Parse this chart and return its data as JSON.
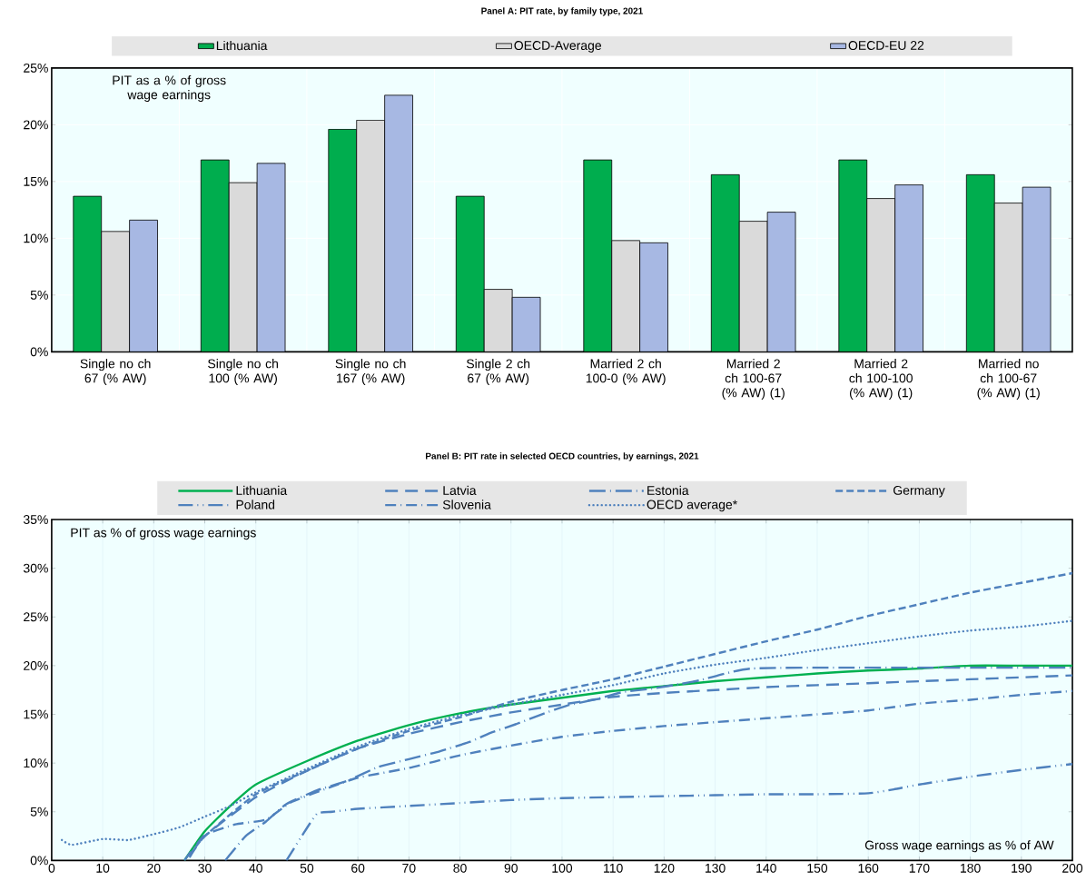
{
  "chart_data": [
    {
      "type": "bar",
      "title": "Panel A: PIT rate, by family type, 2021",
      "ylabel": "PIT as a % of gross wage earnings",
      "categories": [
        "Single no ch 67 (% AW)",
        "Single no ch 100 (% AW)",
        "Single no ch 167 (% AW)",
        "Single 2 ch 67 (% AW)",
        "Married 2 ch 100-0 (% AW)",
        "Married 2 ch 100-67 (% AW)  (1)",
        "Married 2 ch 100-100 (% AW) (1)",
        "Married no ch 100-67 (% AW)  (1)"
      ],
      "series": [
        {
          "name": "Lithuania",
          "color": "#00ad4e",
          "values": [
            13.7,
            16.9,
            19.6,
            13.7,
            16.9,
            15.6,
            16.9,
            15.6
          ]
        },
        {
          "name": "OECD-Average",
          "color": "#dadada",
          "values": [
            10.6,
            14.9,
            20.4,
            5.5,
            9.8,
            11.5,
            13.5,
            13.1
          ]
        },
        {
          "name": "OECD-EU 22",
          "color": "#a7b8e3",
          "values": [
            11.6,
            16.6,
            22.6,
            4.8,
            9.6,
            12.3,
            14.7,
            14.5
          ]
        }
      ],
      "ylim": [
        0,
        25
      ],
      "yticks": [
        {
          "value": 0,
          "label": "0%"
        },
        {
          "value": 5,
          "label": "5%"
        },
        {
          "value": 10,
          "label": "10%"
        },
        {
          "value": 15,
          "label": "15%"
        },
        {
          "value": 20,
          "label": "20%"
        },
        {
          "value": 25,
          "label": "25%"
        }
      ],
      "grid": true,
      "legend": "top"
    },
    {
      "type": "line",
      "title": "Panel B: PIT rate in selected OECD countries, by earnings, 2021",
      "ylabel": "PIT as % of gross wage earnings",
      "xlabel": "Gross wage earnings as % of AW",
      "series": [
        {
          "name": "Lithuania",
          "color": "#00b050",
          "line_style": "solid",
          "x": [
            26,
            30,
            35,
            40,
            50,
            60,
            70,
            80,
            90,
            100,
            110,
            120,
            130,
            140,
            150,
            160,
            170,
            180,
            190,
            200
          ],
          "values": [
            0,
            3.0,
            5.6,
            7.8,
            10.2,
            12.3,
            13.9,
            15.1,
            16.0,
            16.7,
            17.4,
            17.9,
            18.4,
            18.8,
            19.2,
            19.5,
            19.7,
            20.0,
            20.0,
            20.0
          ]
        },
        {
          "name": "Latvia",
          "color": "#4f81bd",
          "line_style": "longdashed",
          "x": [
            27,
            30,
            40,
            50,
            60,
            70,
            80,
            90,
            100,
            110,
            120,
            130,
            140,
            150,
            160,
            170,
            180,
            190,
            200
          ],
          "values": [
            0.3,
            2.5,
            6.5,
            9.2,
            11.5,
            13.0,
            14.2,
            15.2,
            16.0,
            16.8,
            17.2,
            17.5,
            17.8,
            18.0,
            18.2,
            18.4,
            18.6,
            18.8,
            19.0
          ]
        },
        {
          "name": "Estonia",
          "color": "#4f81bd",
          "line_style": "longdashdot",
          "x": [
            34,
            38,
            42,
            46,
            52,
            58,
            64,
            70,
            76,
            82,
            86,
            91,
            96,
            101,
            107,
            112,
            117,
            123,
            127,
            132,
            137,
            150,
            200
          ],
          "values": [
            0,
            2.5,
            4.0,
            5.8,
            7.2,
            8.2,
            9.6,
            10.4,
            11.2,
            12.2,
            13.1,
            14.0,
            15.0,
            15.9,
            16.6,
            17.3,
            17.6,
            18.1,
            18.5,
            19.2,
            19.7,
            19.8,
            19.8
          ]
        },
        {
          "name": "Germany",
          "color": "#4f81bd",
          "line_style": "dashed",
          "x": [
            27,
            30,
            40,
            50,
            60,
            70,
            80,
            90,
            100,
            110,
            120,
            130,
            140,
            150,
            160,
            170,
            180,
            190,
            200
          ],
          "values": [
            0.5,
            2.5,
            6.8,
            9.2,
            11.5,
            13.3,
            14.7,
            16.3,
            17.5,
            18.6,
            19.9,
            21.2,
            22.5,
            23.7,
            25.1,
            26.3,
            27.5,
            28.5,
            29.5
          ]
        },
        {
          "name": "Poland",
          "color": "#4f81bd",
          "line_style": "dashdotdot",
          "x": [
            46,
            49,
            52,
            55,
            60,
            70,
            80,
            90,
            100,
            110,
            120,
            130,
            140,
            150,
            160,
            165,
            170,
            180,
            190,
            200
          ],
          "values": [
            0,
            2.5,
            4.8,
            5.0,
            5.3,
            5.6,
            5.9,
            6.2,
            6.4,
            6.5,
            6.6,
            6.7,
            6.8,
            6.8,
            6.9,
            7.3,
            7.8,
            8.6,
            9.3,
            9.9
          ]
        },
        {
          "name": "Slovenia",
          "color": "#4f81bd",
          "line_style": "dashdot",
          "x": [
            26,
            30,
            36,
            42,
            47,
            55,
            60,
            70,
            80,
            90,
            100,
            110,
            120,
            130,
            140,
            150,
            160,
            170,
            180,
            190,
            200
          ],
          "values": [
            0,
            2.6,
            3.7,
            4.2,
            6.0,
            7.6,
            8.5,
            9.5,
            10.8,
            11.8,
            12.7,
            13.3,
            13.8,
            14.2,
            14.6,
            15.0,
            15.4,
            16.1,
            16.5,
            17.0,
            17.4
          ]
        },
        {
          "name": "OECD average*",
          "color": "#4f81bd",
          "line_style": "dotted",
          "x": [
            2,
            4,
            10,
            15,
            20,
            25,
            30,
            35,
            40,
            50,
            60,
            70,
            80,
            90,
            100,
            110,
            120,
            130,
            140,
            150,
            160,
            170,
            180,
            190,
            200
          ],
          "values": [
            2.1,
            1.6,
            2.2,
            2.1,
            2.7,
            3.4,
            4.5,
            5.6,
            7.0,
            9.4,
            11.7,
            13.5,
            14.9,
            16.0,
            17.0,
            18.0,
            19.2,
            20.1,
            20.8,
            21.6,
            22.3,
            23.0,
            23.6,
            24.0,
            24.6
          ]
        }
      ],
      "xlim": [
        0,
        200
      ],
      "xticks": [
        0,
        10,
        20,
        30,
        40,
        50,
        60,
        70,
        80,
        90,
        100,
        110,
        120,
        130,
        140,
        150,
        160,
        170,
        180,
        190,
        200
      ],
      "ylim": [
        0,
        35
      ],
      "yticks": [
        {
          "value": 0,
          "label": "0%"
        },
        {
          "value": 5,
          "label": "5%"
        },
        {
          "value": 10,
          "label": "10%"
        },
        {
          "value": 15,
          "label": "15%"
        },
        {
          "value": 20,
          "label": "20%"
        },
        {
          "value": 25,
          "label": "25%"
        },
        {
          "value": 30,
          "label": "30%"
        },
        {
          "value": 35,
          "label": "35%"
        }
      ],
      "grid": "x",
      "legend": "top"
    }
  ]
}
